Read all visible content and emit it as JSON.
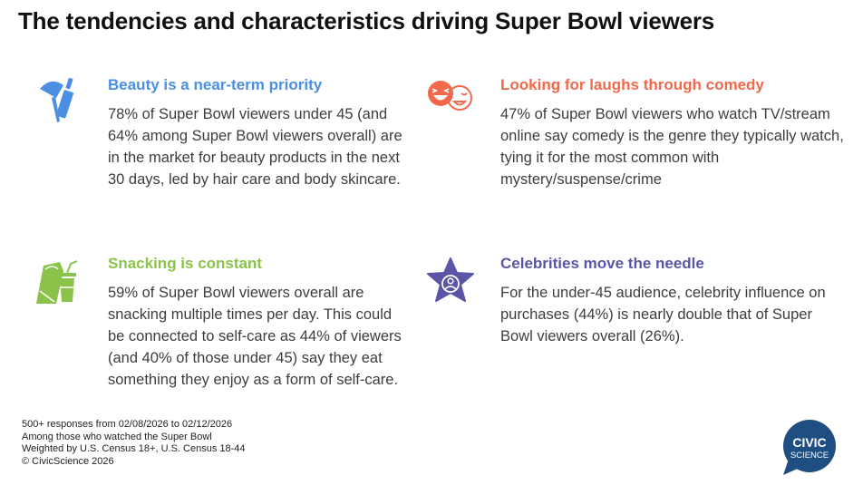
{
  "title": "The tendencies and characteristics driving Super Bowl viewers",
  "colors": {
    "beauty": "#4a8fe2",
    "comedy": "#f2684a",
    "snacking": "#8bc34a",
    "celebrity": "#5a55a6",
    "logo": "#1f4e83"
  },
  "cards": [
    {
      "icon": "lipstick-brush-icon",
      "heading": "Beauty is a near-term priority",
      "body": "78% of Super Bowl viewers under 45 (and 64% among Super Bowl viewers overall) are in the market for beauty products in the next 30 days, led by hair care and body skincare."
    },
    {
      "icon": "laughing-faces-icon",
      "heading": "Looking for laughs through comedy",
      "body": "47% of Super Bowl viewers who watch TV/stream online say comedy is the genre they typically watch, tying it for the most common with mystery/suspense/crime"
    },
    {
      "icon": "burrito-drink-icon",
      "heading": "Snacking is constant",
      "body": "59% of Super Bowl viewers overall are snacking multiple times per day. This could be connected to self-care as 44% of viewers (and 40% of those under 45) say they eat something they enjoy as a form of self-care."
    },
    {
      "icon": "star-person-icon",
      "heading": "Celebrities move the needle",
      "body": "For the under-45 audience, celebrity influence on purchases (44%) is nearly double that of Super Bowl viewers overall (26%)."
    }
  ],
  "footer": [
    "500+ responses from 02/08/2026 to 02/12/2026",
    "Among those who watched the Super Bowl",
    "Weighted by U.S. Census 18+, U.S. Census 18-44",
    "© CivicScience 2026"
  ],
  "logo": {
    "line1": "CIVIC",
    "line2": "SCIENCE"
  }
}
